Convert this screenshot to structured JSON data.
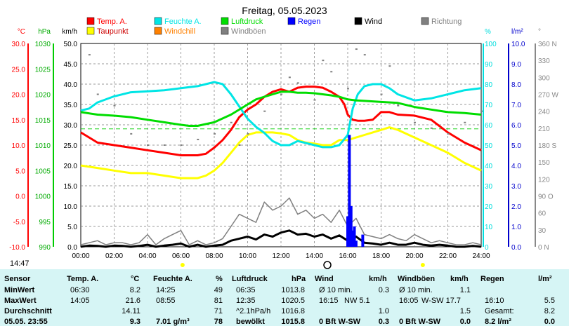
{
  "chart_data": {
    "type": "line",
    "title": "Freitag, 05.05.2023",
    "x_ticks": [
      "00:00",
      "02:00",
      "04:00",
      "06:00",
      "08:00",
      "10:00",
      "12:00",
      "14:00",
      "16:00",
      "18:00",
      "20:00",
      "22:00",
      "24:00"
    ],
    "axes": {
      "temp": {
        "unit": "°C",
        "ticks": [
          "30.0",
          "25.0",
          "20.0",
          "15.0",
          "10.0",
          "5.0",
          "0.0",
          "-5.0",
          "-10.0"
        ],
        "range": [
          -10,
          30
        ],
        "color": "#ff0000"
      },
      "pressure": {
        "unit": "hPa",
        "ticks": [
          "1030",
          "1025",
          "1020",
          "1015",
          "1010",
          "1005",
          "1000",
          "995",
          "990"
        ],
        "range": [
          990,
          1030
        ],
        "color": "#00aa00"
      },
      "wind": {
        "unit": "km/h",
        "ticks": [
          "50.0",
          "45.0",
          "40.0",
          "35.0",
          "30.0",
          "25.0",
          "20.0",
          "15.0",
          "10.0",
          "5.0",
          "0.0"
        ],
        "range": [
          0,
          50
        ],
        "color": "#000000"
      },
      "humidity": {
        "unit": "%",
        "ticks": [
          "100",
          "90",
          "80",
          "70",
          "60",
          "50",
          "40",
          "30",
          "20",
          "10",
          "0"
        ],
        "range": [
          0,
          100
        ],
        "color": "#00dddd"
      },
      "rain": {
        "unit": "l/m²",
        "ticks": [
          "10.0",
          "9.0",
          "8.0",
          "7.0",
          "6.0",
          "5.0",
          "4.0",
          "3.0",
          "2.0",
          "1.0",
          "0.0"
        ],
        "range": [
          0,
          10
        ],
        "color": "#0000cc"
      },
      "direction": {
        "unit": "°",
        "ticks": [
          "360 N",
          "330",
          "300",
          "270 W",
          "240",
          "210",
          "180 S",
          "150",
          "120",
          "90 O",
          "60",
          "30",
          "0 N"
        ],
        "range": [
          0,
          360
        ],
        "color": "#888888"
      }
    },
    "legend": [
      {
        "name": "Temp. A.",
        "color": "#ff0000"
      },
      {
        "name": "Feuchte A.",
        "color": "#00e5e5"
      },
      {
        "name": "Luftdruck",
        "color": "#00dd00"
      },
      {
        "name": "Regen",
        "color": "#0000ff"
      },
      {
        "name": "Wind",
        "color": "#000000"
      },
      {
        "name": "Richtung",
        "color": "#808080"
      },
      {
        "name": "Taupunkt",
        "color": "#ffff00"
      },
      {
        "name": "Windchill",
        "color": "#ff8000"
      },
      {
        "name": "Windböen",
        "color": "#808080"
      }
    ],
    "series": [
      {
        "name": "Temp. A.",
        "axis": "temp",
        "x": [
          0,
          0.5,
          1,
          2,
          3,
          4,
          5,
          6,
          6.5,
          7,
          7.5,
          8,
          8.5,
          9,
          9.5,
          10,
          10.5,
          11,
          11.5,
          12,
          12.5,
          13,
          13.5,
          14,
          14.5,
          15,
          15.5,
          15.8,
          16,
          16.3,
          16.6,
          17,
          17.5,
          18,
          18.5,
          19,
          20,
          21,
          22,
          23,
          24
        ],
        "y": [
          12.5,
          11.5,
          10.5,
          10,
          9.5,
          9,
          8.5,
          8,
          8,
          8,
          8.3,
          9.5,
          11,
          13,
          15.5,
          17,
          18,
          19.5,
          20.5,
          21,
          20.5,
          21.3,
          21.5,
          21.5,
          21.3,
          20.5,
          19.5,
          18,
          16,
          15,
          14.8,
          14.8,
          15,
          16.5,
          16.5,
          16,
          15.8,
          15,
          12.5,
          10.5,
          9
        ]
      },
      {
        "name": "Taupunkt",
        "axis": "temp",
        "x": [
          0,
          1,
          2,
          3,
          4,
          5,
          6,
          6.5,
          7,
          7.5,
          8,
          8.5,
          9,
          9.5,
          10,
          10.5,
          11,
          11.5,
          12,
          12.5,
          13,
          13.5,
          14,
          14.5,
          15,
          15.5,
          16,
          16.5,
          17,
          17.5,
          18,
          18.5,
          19,
          20,
          21,
          22,
          23,
          24
        ],
        "y": [
          6,
          5.5,
          5,
          4.5,
          4.5,
          4,
          3.5,
          3.5,
          3.5,
          4,
          5,
          6.5,
          8.5,
          10.5,
          12,
          12.5,
          12.5,
          12.5,
          12.3,
          12,
          11,
          10.5,
          10.3,
          10,
          10,
          11,
          11,
          11.5,
          12,
          12.5,
          13,
          13.5,
          13,
          11.5,
          10,
          8.5,
          6.5,
          5
        ]
      },
      {
        "name": "Feuchte A.",
        "axis": "humidity",
        "x": [
          0,
          0.5,
          1,
          2,
          3,
          4,
          5,
          6,
          7,
          7.5,
          8,
          8.5,
          9,
          9.5,
          10,
          10.5,
          11,
          11.5,
          12,
          12.5,
          13,
          13.5,
          14,
          14.5,
          15,
          15.5,
          16,
          16.3,
          16.6,
          17,
          17.5,
          18,
          18.5,
          19,
          20,
          21,
          22,
          23,
          24
        ],
        "y": [
          67,
          68,
          71,
          74,
          76,
          76.5,
          77,
          78,
          79,
          80,
          81,
          80,
          75,
          69,
          63,
          59,
          56,
          52,
          50,
          50,
          52,
          51,
          50,
          49,
          49,
          50,
          55,
          68,
          75,
          79,
          80,
          80,
          78,
          75,
          72,
          73,
          75,
          77,
          78
        ]
      },
      {
        "name": "Luftdruck",
        "axis": "pressure",
        "x": [
          0,
          1,
          2,
          3,
          4,
          5,
          6,
          6.5,
          7,
          8,
          9,
          10,
          10.5,
          11,
          11.5,
          12,
          12.5,
          13,
          13.5,
          14,
          14.5,
          15,
          15.5,
          16,
          16.5,
          17,
          18,
          19,
          20,
          21,
          22,
          23,
          24
        ],
        "y": [
          1016.5,
          1016,
          1015.8,
          1015.5,
          1015,
          1014.5,
          1014,
          1013.8,
          1013.8,
          1014.5,
          1016,
          1018,
          1019,
          1019.5,
          1020,
          1020.5,
          1020.5,
          1020.3,
          1020.3,
          1020.2,
          1020,
          1019.8,
          1019.5,
          1019,
          1018.8,
          1018.7,
          1018.5,
          1018.3,
          1017.5,
          1017,
          1016.5,
          1016.3,
          1016
        ]
      },
      {
        "name": "Wind",
        "axis": "wind",
        "x": [
          0,
          0.5,
          1,
          1.5,
          2,
          2.5,
          3,
          3.5,
          4,
          4.5,
          5,
          5.5,
          6,
          6.5,
          7,
          7.5,
          8,
          8.5,
          9,
          9.5,
          10,
          10.5,
          11,
          11.5,
          12,
          12.5,
          13,
          13.5,
          14,
          14.5,
          15,
          15.5,
          16,
          16.5,
          17,
          17.5,
          18,
          18.5,
          19,
          19.5,
          20,
          20.5,
          21,
          21.5,
          22,
          22.5,
          23,
          23.5,
          24
        ],
        "y": [
          0,
          0.3,
          0.2,
          0,
          0.3,
          0.2,
          0,
          0.2,
          0.5,
          0,
          0.3,
          0.5,
          0.8,
          0,
          0.5,
          0,
          0.3,
          0.5,
          1.5,
          2,
          2.5,
          1.8,
          3,
          2.5,
          3.5,
          4,
          3,
          3.2,
          2.5,
          3,
          2,
          2.8,
          1.5,
          2.5,
          1,
          0.8,
          0.5,
          1,
          0.5,
          0.5,
          1,
          0.5,
          0.3,
          0.5,
          0.3,
          0,
          0,
          0.2,
          0
        ]
      },
      {
        "name": "Windböen",
        "axis": "wind",
        "x": [
          0,
          0.5,
          1,
          1.5,
          2,
          2.5,
          3,
          3.5,
          4,
          4.5,
          5,
          5.5,
          6,
          6.5,
          7,
          7.5,
          8,
          8.5,
          9,
          9.5,
          10,
          10.5,
          11,
          11.5,
          12,
          12.5,
          13,
          13.5,
          14,
          14.5,
          15,
          15.5,
          16,
          16.5,
          17,
          17.5,
          18,
          18.5,
          19,
          19.5,
          20,
          20.5,
          21,
          21.5,
          22,
          22.5,
          23,
          23.5,
          24
        ],
        "y": [
          0.5,
          1,
          1.5,
          0.5,
          1,
          1,
          0.5,
          1,
          3,
          0.5,
          2,
          3,
          4,
          0.5,
          1.5,
          0.5,
          1,
          2,
          5,
          8,
          7,
          6,
          11,
          9,
          10,
          12,
          8,
          9,
          7,
          8,
          6,
          9,
          5,
          7,
          3,
          2.5,
          2,
          3,
          2,
          1.5,
          3,
          2,
          1,
          1.5,
          1,
          0.5,
          0.5,
          1,
          0.5
        ]
      },
      {
        "name": "Regen",
        "axis": "rain",
        "x": [
          16.0,
          16.1,
          16.2,
          16.3,
          16.4,
          16.5,
          16.9
        ],
        "y": [
          1.5,
          5.5,
          2.0,
          0.8,
          1.0,
          0.3,
          0.6
        ]
      },
      {
        "name": "Richtung",
        "axis": "direction",
        "x": [
          0.5,
          1,
          2,
          3,
          4,
          5,
          6,
          7,
          8,
          9,
          9.5,
          10,
          11,
          12,
          12.5,
          13,
          14,
          14.5,
          15,
          16,
          16.5,
          17,
          18,
          18.5,
          19,
          20,
          21,
          22,
          23,
          24
        ],
        "y": [
          340,
          270,
          250,
          200,
          180,
          180,
          180,
          190,
          200,
          220,
          180,
          200,
          240,
          270,
          300,
          290,
          260,
          330,
          310,
          280,
          350,
          340,
          270,
          320,
          250,
          220,
          210,
          200,
          220,
          240
        ]
      }
    ],
    "markers": [
      {
        "label": "14:47",
        "x": "14:47"
      }
    ]
  },
  "table": {
    "headers": {
      "sensor": "Sensor",
      "temp": "Temp. A.",
      "temp_u": "°C",
      "hum": "Feuchte A.",
      "hum_u": "%",
      "press": "Luftdruck",
      "press_u": "hPa",
      "wind": "Wind",
      "wind_u": "km/h",
      "gust": "Windböen",
      "gust_u": "km/h",
      "rain": "Regen",
      "rain_u": "l/m²"
    },
    "rows": [
      {
        "label": "MinWert",
        "temp_t": "06:30",
        "temp_v": "8.2",
        "hum_t": "14:25",
        "hum_v": "49",
        "press_t": "06:35",
        "press_v": "1013.8",
        "wind_t": "Ø 10 min.",
        "wind_v": "0.3",
        "gust_t": "Ø 10 min.",
        "gust_v": "1.1",
        "rain_t": "",
        "rain_v": ""
      },
      {
        "label": "MaxWert",
        "temp_t": "14:05",
        "temp_v": "21.6",
        "hum_t": "08:55",
        "hum_v": "81",
        "press_t": "12:35",
        "press_v": "1020.5",
        "wind_t": "16:15",
        "wind_d": "NW 5.1",
        "wind_v": "",
        "gust_t": "16:05",
        "gust_d": "W-SW 17.7",
        "gust_v": "",
        "rain_t": "16:10",
        "rain_v": "5.5"
      },
      {
        "label": "Durchschnitt",
        "temp_t": "",
        "temp_v": "14.11",
        "hum_t": "",
        "hum_v": "71",
        "press_t": "^2.1hPa/h",
        "press_v": "1016.8",
        "wind_t": "",
        "wind_v": "1.0",
        "gust_t": "",
        "gust_v": "1.5",
        "rain_t": "Gesamt:",
        "rain_v": "8.2"
      },
      {
        "label": "05.05. 23:55",
        "temp_t": "",
        "temp_v": "9.3",
        "hum_t": "7.01 g/m³",
        "hum_v": "78",
        "press_t": "bewölkt",
        "press_v": "1015.8",
        "wind_t": "0 Bft W-SW",
        "wind_v": "0.3",
        "gust_t": "0 Bft W-SW",
        "gust_v": "0.0",
        "rain_t": "8.2 l/m²",
        "rain_v": "0.0"
      }
    ]
  }
}
